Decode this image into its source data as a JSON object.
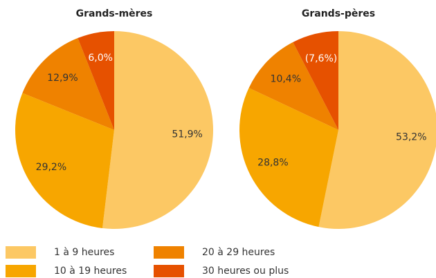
{
  "chart_data": [
    {
      "type": "pie",
      "title": "Grands-mères",
      "categories": [
        "1 à 9 heures",
        "10 à 19 heures",
        "20 à 29 heures",
        "30 heures ou plus"
      ],
      "values": [
        51.9,
        29.2,
        12.9,
        6.0
      ],
      "value_labels": [
        "51,9%",
        "29,2%",
        "12,9%",
        "6,0%"
      ],
      "colors": [
        "#fcc864",
        "#f7a600",
        "#ef8200",
        "#e65100"
      ]
    },
    {
      "type": "pie",
      "title": "Grands-pères",
      "categories": [
        "1 à 9 heures",
        "10 à 19 heures",
        "20 à 29 heures",
        "30 heures ou plus"
      ],
      "values": [
        53.2,
        28.8,
        10.4,
        7.6
      ],
      "value_labels": [
        "53,2%",
        "28,8%",
        "10,4%",
        "(7,6%)"
      ],
      "colors": [
        "#fcc864",
        "#f7a600",
        "#ef8200",
        "#e65100"
      ]
    }
  ]
}
